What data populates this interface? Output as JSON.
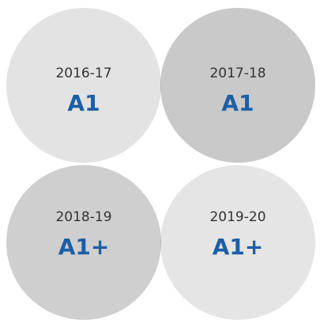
{
  "items": [
    {
      "period": "2016-17",
      "rating": "A1"
    },
    {
      "period": "2017-18",
      "rating": "A1"
    },
    {
      "period": "2018-19",
      "rating": "A1+"
    },
    {
      "period": "2019-20",
      "rating": "A1+"
    }
  ]
}
